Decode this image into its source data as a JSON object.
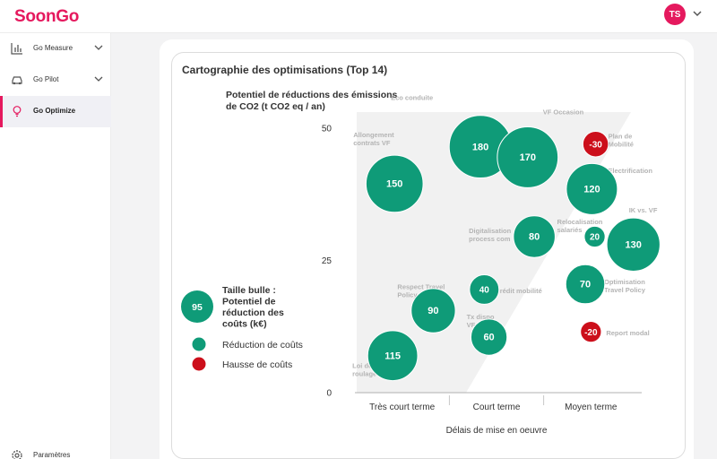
{
  "app": {
    "logo": "SoonGo",
    "user_initials": "TS"
  },
  "sidebar": {
    "items": [
      {
        "label": "Go Measure",
        "icon": "bar-chart-icon",
        "expandable": true
      },
      {
        "label": "Go Pilot",
        "icon": "car-icon",
        "expandable": true
      },
      {
        "label": "Go Optimize",
        "icon": "lightbulb-icon",
        "expandable": false,
        "active": true
      }
    ],
    "settings_label": "Paramètres"
  },
  "card": {
    "title": "Cartographie des optimisations (Top 14)"
  },
  "colors": {
    "brand": "#e5195e",
    "green": "#0f9b78",
    "red": "#cc0f1b",
    "label_gray": "#b4b4b4"
  },
  "chart_data": {
    "type": "scatter",
    "title": "Cartographie des optimisations (Top 14)",
    "ylabel_lines": [
      "Potentiel de réductions des émissions",
      "de CO2 (t CO2 eq / an)"
    ],
    "xlabel": "Délais de mise en oeuvre",
    "ylim": [
      0,
      50
    ],
    "yticks": [
      0,
      25,
      50
    ],
    "xlim": [
      0,
      3
    ],
    "xcategories": [
      "Très court terme",
      "Court terme",
      "Moyen terme"
    ],
    "size_legend": {
      "value": "95",
      "label_lines": [
        "Taille bulle :",
        "Potentiel de",
        "réduction des",
        "coûts (k€)"
      ]
    },
    "legend": [
      {
        "label": "Réduction de coûts",
        "color": "#0f9b78"
      },
      {
        "label": "Hausse de coûts",
        "color": "#cc0f1b"
      }
    ],
    "points": [
      {
        "name": "Eco conduite",
        "label_lines": [
          "Eco conduite"
        ],
        "x": 1.33,
        "y": 46.5,
        "value": 180,
        "type": "reduction"
      },
      {
        "name": "VF Occasion",
        "label_lines": [
          "VF Occasion"
        ],
        "x": 1.83,
        "y": 44.5,
        "value": 170,
        "type": "reduction"
      },
      {
        "name": "Allongement contrats VF",
        "label_lines": [
          "Allongement",
          "contrats VF"
        ],
        "x": 0.42,
        "y": 39.5,
        "value": 150,
        "type": "reduction"
      },
      {
        "name": "Plan de Mobilité",
        "label_lines": [
          "Plan de",
          "Mobilité"
        ],
        "x": 2.55,
        "y": 47,
        "value": -30,
        "type": "hausse"
      },
      {
        "name": "Electrification",
        "label_lines": [
          "Electrification"
        ],
        "x": 2.51,
        "y": 38.5,
        "value": 120,
        "type": "reduction"
      },
      {
        "name": "IK vs. VF",
        "label_lines": [
          "IK vs. VF"
        ],
        "x": 2.95,
        "y": 28,
        "value": 130,
        "type": "reduction"
      },
      {
        "name": "Relocalisation salariés",
        "label_lines": [
          "Relocalisation",
          "salariés"
        ],
        "x": 2.54,
        "y": 29.5,
        "value": 20,
        "type": "reduction"
      },
      {
        "name": "Digitalisation process com",
        "label_lines": [
          "Digitalisation",
          "process com"
        ],
        "x": 1.9,
        "y": 29.5,
        "value": 80,
        "type": "reduction"
      },
      {
        "name": "Optimisation Travel Policy",
        "label_lines": [
          "Optimisation",
          "Travel Policy"
        ],
        "x": 2.44,
        "y": 20.5,
        "value": 70,
        "type": "reduction"
      },
      {
        "name": "Crédit mobilité",
        "label_lines": [
          "Crédit mobilité"
        ],
        "x": 1.37,
        "y": 19.5,
        "value": 40,
        "type": "reduction"
      },
      {
        "name": "Respect Travel Policy",
        "label_lines": [
          "Respect Travel",
          "Policy"
        ],
        "x": 0.83,
        "y": 15.5,
        "value": 90,
        "type": "reduction"
      },
      {
        "name": "Tx dispo VF",
        "label_lines": [
          "Tx    dispo",
          "VF"
        ],
        "x": 1.42,
        "y": 10.5,
        "value": 60,
        "type": "reduction"
      },
      {
        "name": "Report modal",
        "label_lines": [
          "Report modal"
        ],
        "x": 2.5,
        "y": 11.5,
        "value": -20,
        "type": "hausse"
      },
      {
        "name": "Loi de roulage",
        "label_lines": [
          "Loi de",
          "roulage"
        ],
        "x": 0.4,
        "y": 7,
        "value": 115,
        "type": "reduction"
      }
    ]
  }
}
